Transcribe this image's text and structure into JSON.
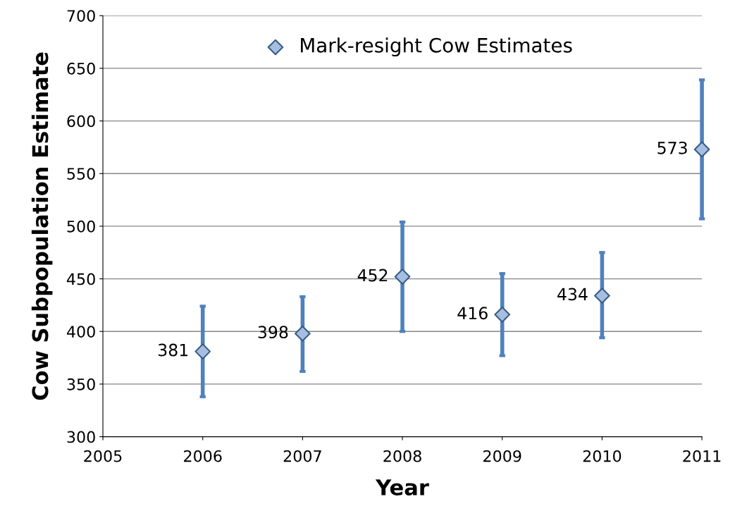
{
  "chart_data": {
    "type": "scatter",
    "xlabel": "Year",
    "ylabel": "Cow Subpopulation Estimate",
    "x": [
      2006,
      2007,
      2008,
      2009,
      2010,
      2011
    ],
    "series": [
      {
        "name": "Mark-resight Cow Estimates",
        "color": "#a6bedf",
        "values": [
          381,
          398,
          452,
          416,
          434,
          573
        ],
        "errors": [
          [
            338,
            424
          ],
          [
            362,
            433
          ],
          [
            400,
            504
          ],
          [
            377,
            455
          ],
          [
            394,
            475
          ],
          [
            507,
            639
          ]
        ]
      }
    ],
    "marker": "diamond",
    "data_labels": true,
    "xlim": [
      2005,
      2011
    ],
    "xticks": [
      2005,
      2006,
      2007,
      2008,
      2009,
      2010,
      2011
    ],
    "ylim": [
      300,
      700
    ],
    "yticks": [
      300,
      350,
      400,
      450,
      500,
      550,
      600,
      650,
      700
    ],
    "grid": "y",
    "legend": "top"
  }
}
